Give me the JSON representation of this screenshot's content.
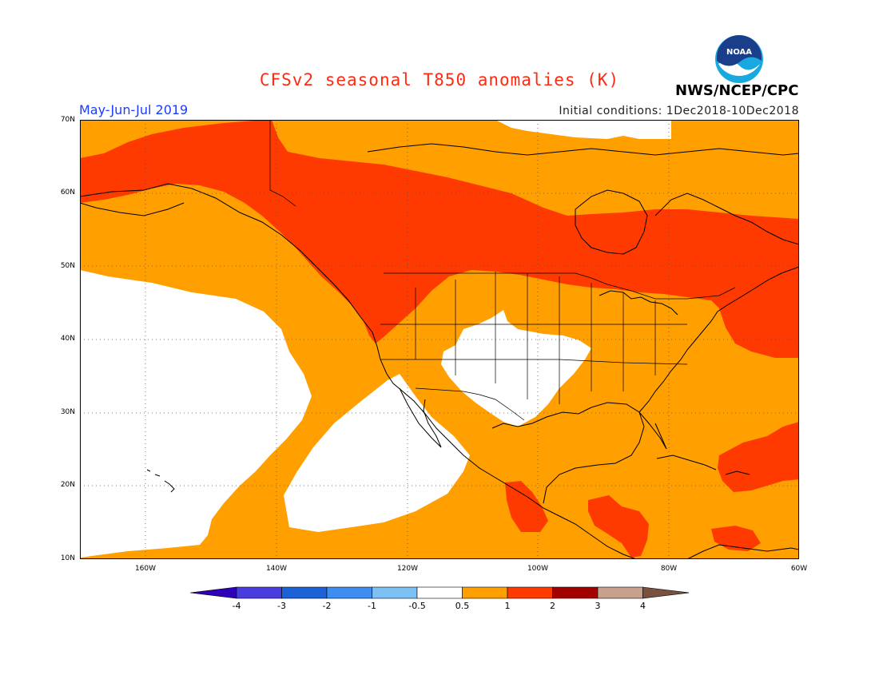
{
  "title": "CFSv2 seasonal T850 anomalies (K)",
  "period": "May-Jun-Jul 2019",
  "initial_conditions": "Initial conditions: 1Dec2018-10Dec2018",
  "agency": "NWS/NCEP/CPC",
  "logo_text": "NOAA",
  "colors": {
    "title": "#ff2a12",
    "period": "#1a3cff",
    "ic": "#222222",
    "ocean_neutral": "#ffffff",
    "orange": "#ff9f00",
    "red": "#ff3a00",
    "darkred": "#a00000"
  },
  "lat_labels": [
    "70N",
    "60N",
    "50N",
    "40N",
    "30N",
    "20N",
    "10N"
  ],
  "lon_labels": [
    "160W",
    "140W",
    "120W",
    "100W",
    "80W",
    "60W"
  ],
  "colorbar": {
    "segments": [
      {
        "color": "#2e00b8"
      },
      {
        "color": "#4a3de0"
      },
      {
        "color": "#1c62d6"
      },
      {
        "color": "#3d8ef0"
      },
      {
        "color": "#7cc0f4"
      },
      {
        "color": "#ffffff"
      },
      {
        "color": "#ff9f00"
      },
      {
        "color": "#ff3a00"
      },
      {
        "color": "#a30000"
      },
      {
        "color": "#c8a08e"
      },
      {
        "color": "#7a5040"
      }
    ],
    "labels": [
      "-4",
      "-3",
      "-2",
      "-1",
      "-0.5",
      "0.5",
      "1",
      "2",
      "3",
      "4"
    ]
  }
}
